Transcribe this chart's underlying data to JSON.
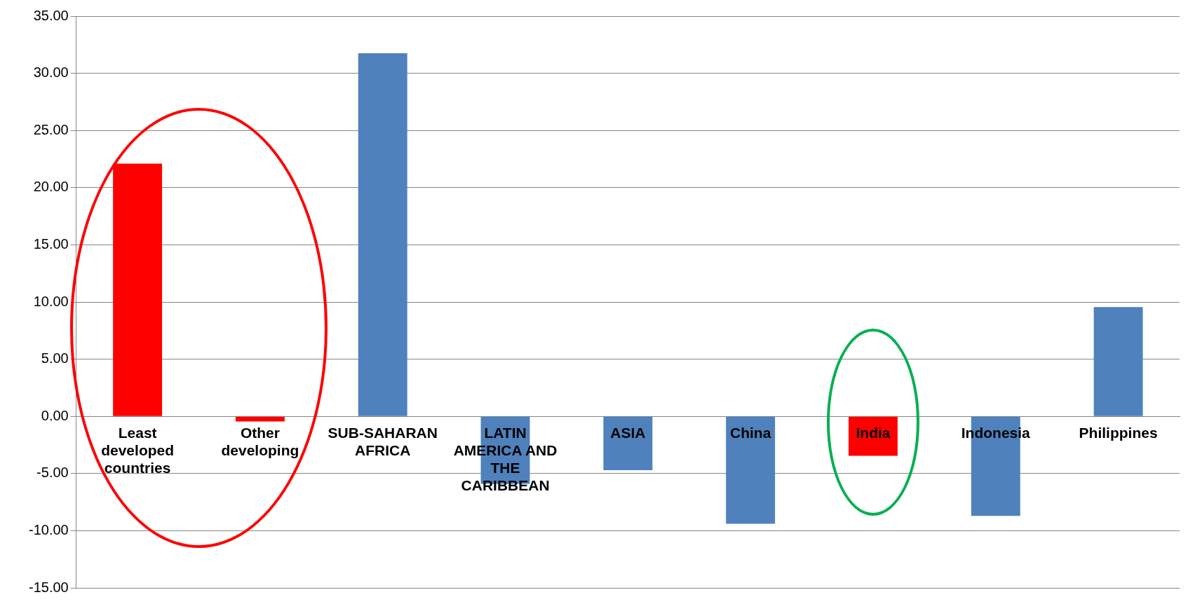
{
  "chart_data": {
    "type": "bar",
    "categories": [
      "Least developed countries",
      "Other developing",
      "SUB-SAHARAN AFRICA",
      "LATIN AMERICA AND THE CARIBBEAN",
      "ASIA",
      "China",
      "India",
      "Indonesia",
      "Philippines"
    ],
    "values": [
      22.1,
      -0.45,
      31.75,
      -5.9,
      -4.7,
      -9.4,
      -3.45,
      -8.7,
      9.55
    ],
    "colors": [
      "#ff0000",
      "#ff0000",
      "#4f81bd",
      "#4f81bd",
      "#4f81bd",
      "#4f81bd",
      "#ff0000",
      "#4f81bd",
      "#4f81bd"
    ],
    "ylim": [
      -15,
      35
    ],
    "yticks": [
      {
        "value": -15,
        "label": "-15.00"
      },
      {
        "value": -10,
        "label": "-10.00"
      },
      {
        "value": -5,
        "label": "-5.00"
      },
      {
        "value": 0,
        "label": "0.00"
      },
      {
        "value": 5,
        "label": "5.00"
      },
      {
        "value": 10,
        "label": "10.00"
      },
      {
        "value": 15,
        "label": "15.00"
      },
      {
        "value": 20,
        "label": "20.00"
      },
      {
        "value": 25,
        "label": "25.00"
      },
      {
        "value": 30,
        "label": "30.00"
      },
      {
        "value": 35,
        "label": "35.00"
      }
    ],
    "grid": "y",
    "legend": false
  }
}
